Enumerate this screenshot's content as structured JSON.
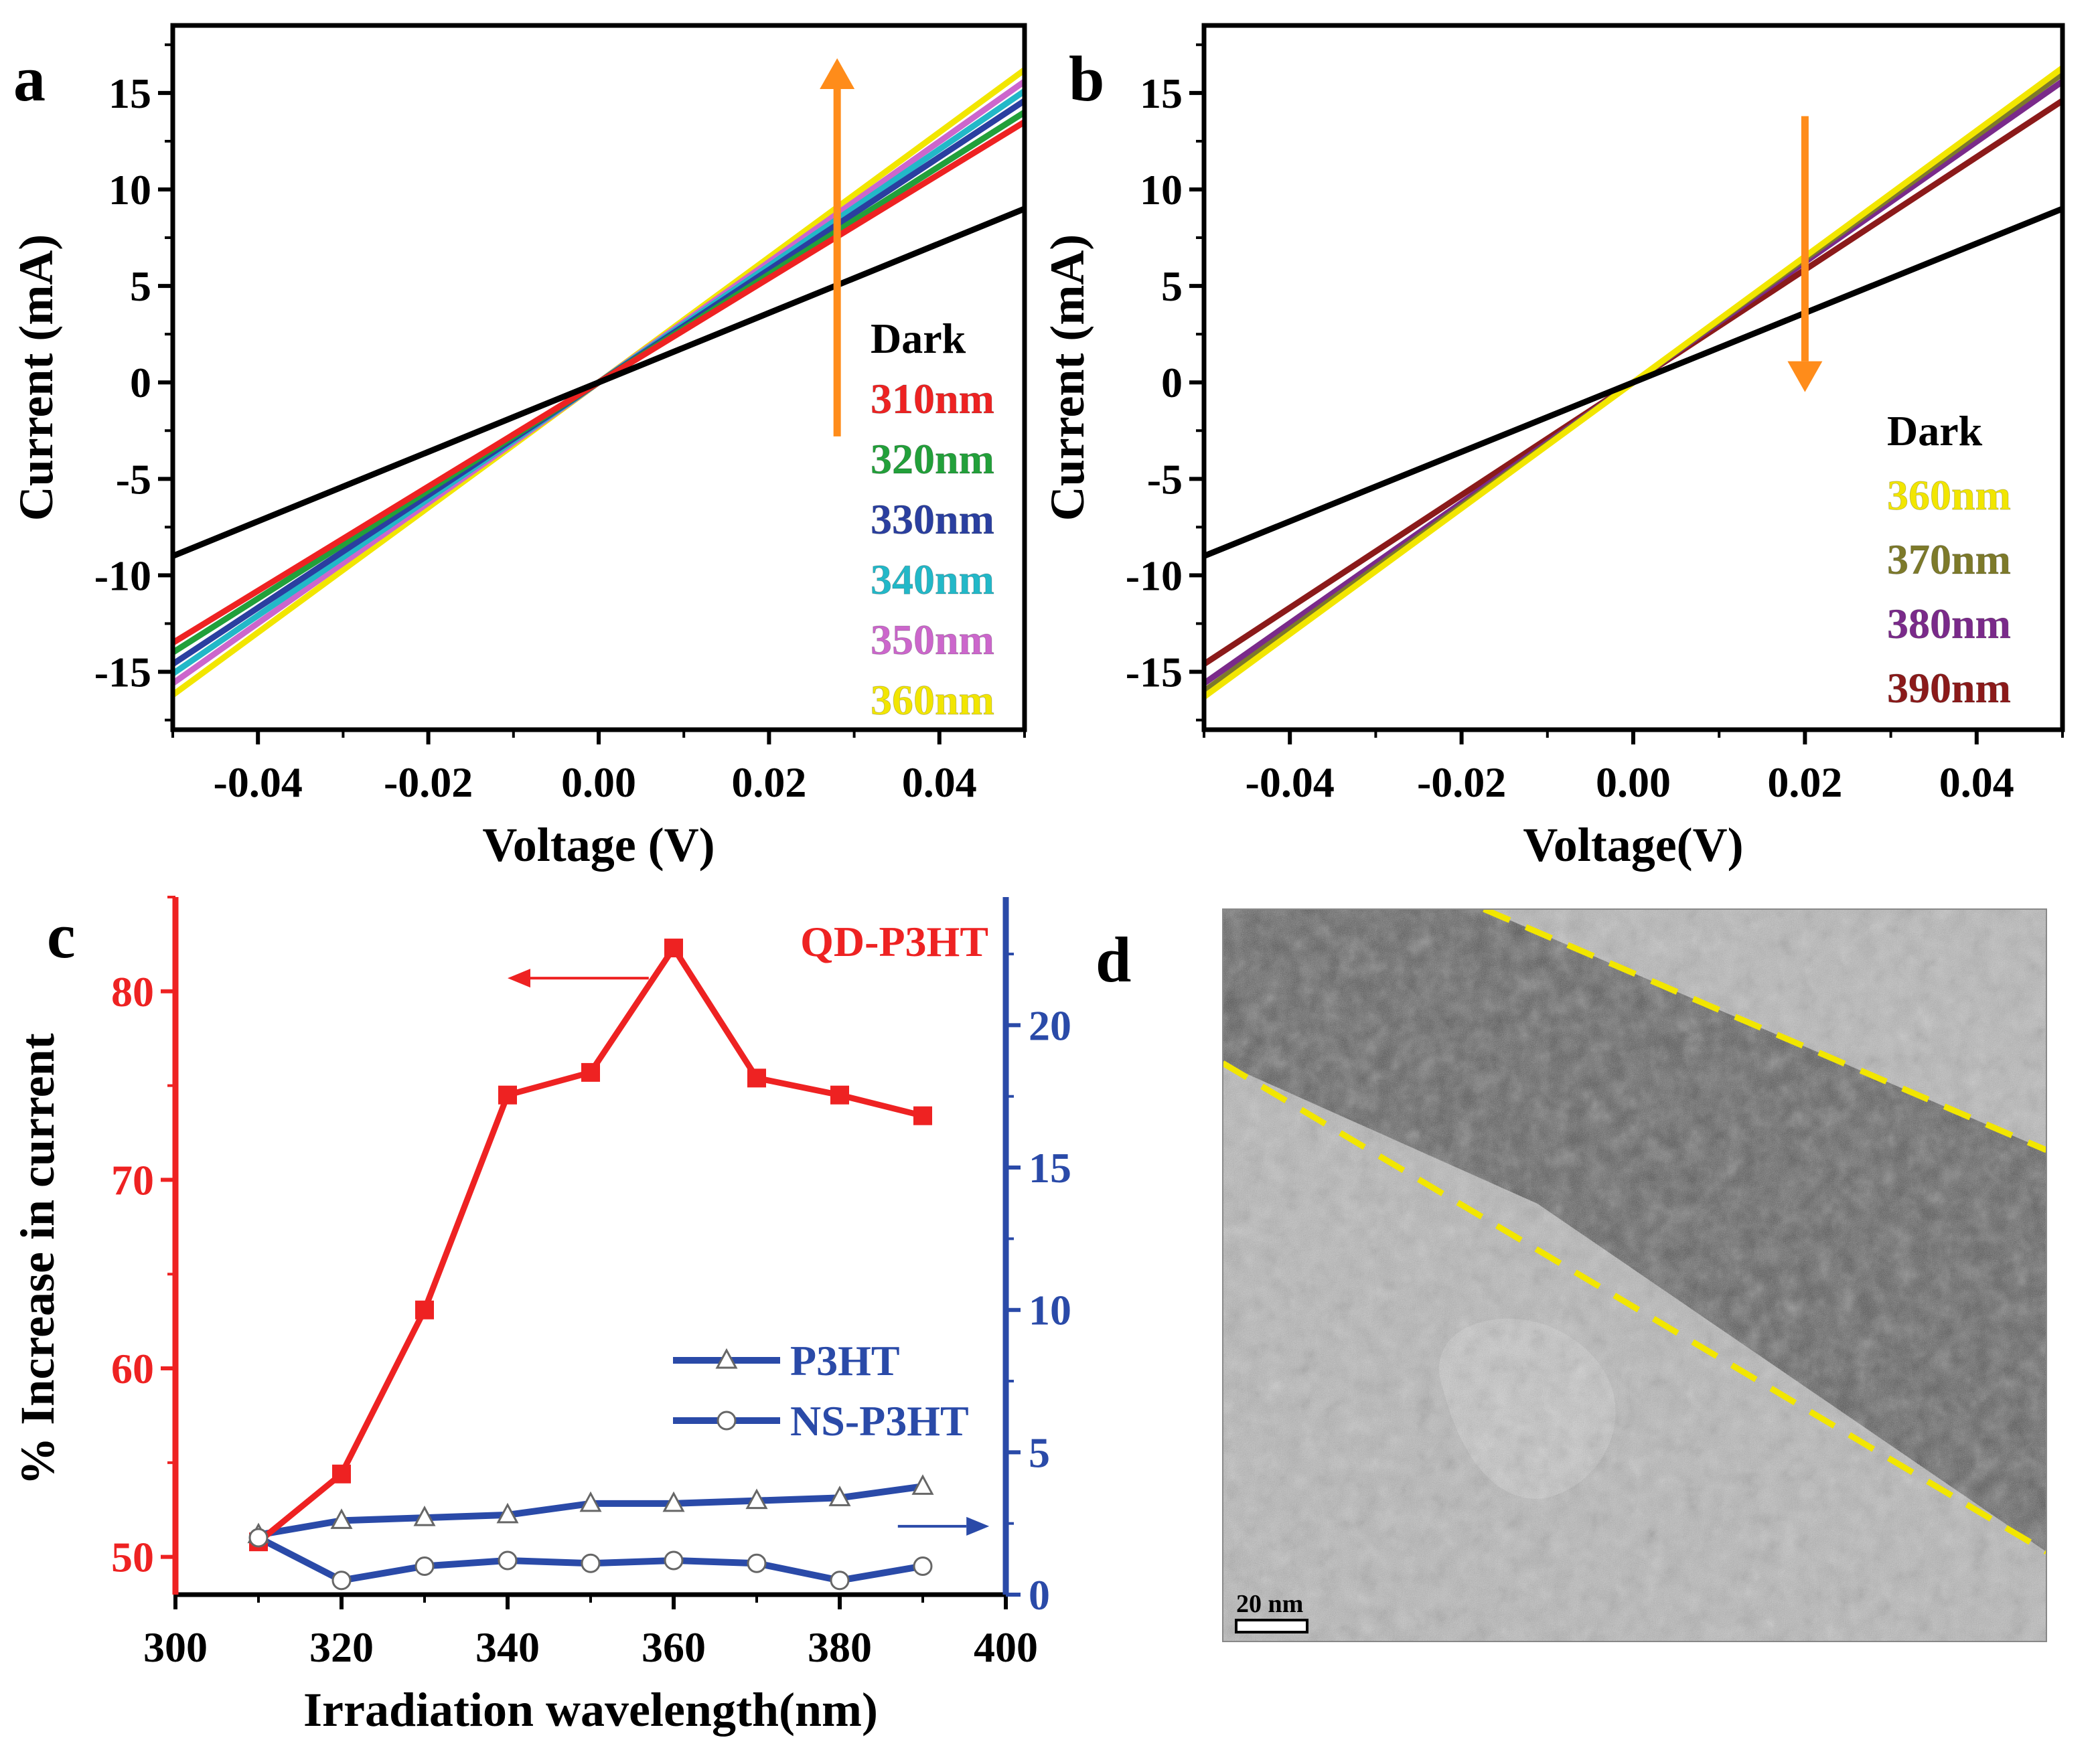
{
  "colors": {
    "dark": "#000000",
    "nm310": "#ee2222",
    "nm320": "#22a03a",
    "nm330": "#2a3fa0",
    "nm340": "#22b8c8",
    "nm350": "#cc66cc",
    "nm360": "#f2e600",
    "nm370": "#7d7a2a",
    "nm380": "#7a2a8a",
    "nm390": "#8b1a1a",
    "arrow": "#ff8c1a",
    "red_axis": "#ee2222",
    "blue_axis": "#2a4aa8",
    "dash": "#f2e600"
  },
  "chart_data": [
    {
      "id": "a",
      "panel_label": "a",
      "type": "line",
      "xlabel": "Voltage (V)",
      "ylabel": "Current (mA)",
      "xlim": [
        -0.05,
        0.05
      ],
      "ylim": [
        -18,
        18.5
      ],
      "xticks": [
        -0.04,
        -0.02,
        0.0,
        0.02,
        0.04
      ],
      "xtick_labels": [
        "-0.04",
        "-0.02",
        "0.00",
        "0.02",
        "0.04"
      ],
      "yticks": [
        -15,
        -10,
        -5,
        0,
        5,
        10,
        15
      ],
      "ytick_labels": [
        "-15",
        "-10",
        "-5",
        "0",
        "5",
        "10",
        "15"
      ],
      "series": [
        {
          "name": "Dark",
          "x": [
            -0.05,
            0.05
          ],
          "y": [
            -9.0,
            9.0
          ]
        },
        {
          "name": "310nm",
          "x": [
            -0.05,
            0.05
          ],
          "y": [
            -13.5,
            13.5
          ]
        },
        {
          "name": "320nm",
          "x": [
            -0.05,
            0.05
          ],
          "y": [
            -14.0,
            14.0
          ]
        },
        {
          "name": "330nm",
          "x": [
            -0.05,
            0.05
          ],
          "y": [
            -14.6,
            14.6
          ]
        },
        {
          "name": "340nm",
          "x": [
            -0.05,
            0.05
          ],
          "y": [
            -15.1,
            15.1
          ]
        },
        {
          "name": "350nm",
          "x": [
            -0.05,
            0.05
          ],
          "y": [
            -15.6,
            15.6
          ]
        },
        {
          "name": "360nm",
          "x": [
            -0.05,
            0.05
          ],
          "y": [
            -16.2,
            16.2
          ]
        }
      ],
      "legend": [
        "Dark",
        "310nm",
        "320nm",
        "330nm",
        "340nm",
        "350nm",
        "360nm"
      ],
      "legend_position": "right",
      "annotation": {
        "type": "arrow",
        "direction": "up",
        "x": 0.028,
        "y_from": -2.8,
        "y_to": 16.8
      }
    },
    {
      "id": "b",
      "panel_label": "b",
      "type": "line",
      "xlabel": "Voltage(V)",
      "ylabel": "Current (mA)",
      "xlim": [
        -0.05,
        0.05
      ],
      "ylim": [
        -18,
        18.5
      ],
      "xticks": [
        -0.04,
        -0.02,
        0.0,
        0.02,
        0.04
      ],
      "xtick_labels": [
        "-0.04",
        "-0.02",
        "0.00",
        "0.02",
        "0.04"
      ],
      "yticks": [
        -15,
        -10,
        -5,
        0,
        5,
        10,
        15
      ],
      "ytick_labels": [
        "-15",
        "-10",
        "-5",
        "0",
        "5",
        "10",
        "15"
      ],
      "series": [
        {
          "name": "Dark",
          "x": [
            -0.05,
            0.05
          ],
          "y": [
            -9.0,
            9.0
          ]
        },
        {
          "name": "360nm",
          "x": [
            -0.05,
            0.05
          ],
          "y": [
            -16.3,
            16.3
          ]
        },
        {
          "name": "370nm",
          "x": [
            -0.05,
            0.05
          ],
          "y": [
            -16.0,
            16.0
          ]
        },
        {
          "name": "380nm",
          "x": [
            -0.05,
            0.05
          ],
          "y": [
            -15.6,
            15.6
          ]
        },
        {
          "name": "390nm",
          "x": [
            -0.05,
            0.05
          ],
          "y": [
            -14.6,
            14.6
          ]
        }
      ],
      "legend": [
        "Dark",
        "360nm",
        "370nm",
        "380nm",
        "390nm"
      ],
      "legend_position": "lower-right",
      "annotation": {
        "type": "arrow",
        "direction": "down",
        "x": 0.02,
        "y_from": 13.8,
        "y_to": -0.5
      }
    },
    {
      "id": "c",
      "panel_label": "c",
      "type": "line",
      "xlabel": "Irradiation wavelength(nm)",
      "ylabel": "% Increase in current",
      "xlim": [
        300,
        400
      ],
      "ylim_left": [
        48,
        85
      ],
      "ylim_right": [
        0,
        24.5
      ],
      "xticks": [
        300,
        320,
        340,
        360,
        380,
        400
      ],
      "xtick_labels": [
        "300",
        "320",
        "340",
        "360",
        "380",
        "400"
      ],
      "yticks_left": [
        50,
        60,
        70,
        80
      ],
      "ytick_labels_left": [
        "50",
        "60",
        "70",
        "80"
      ],
      "yticks_right": [
        0,
        5,
        10,
        15,
        20
      ],
      "ytick_labels_right": [
        "0",
        "5",
        "10",
        "15",
        "20"
      ],
      "x": [
        310,
        320,
        330,
        340,
        350,
        360,
        370,
        380,
        390
      ],
      "series": [
        {
          "name": "QD-P3HT",
          "axis": "left",
          "marker": "square",
          "values": [
            50.8,
            54.4,
            63.1,
            74.5,
            75.7,
            82.3,
            75.4,
            74.5,
            73.4
          ]
        },
        {
          "name": "P3HT",
          "axis": "right",
          "marker": "triangle",
          "values": [
            2.1,
            2.6,
            2.7,
            2.8,
            3.2,
            3.2,
            3.3,
            3.4,
            3.8
          ]
        },
        {
          "name": "NS-P3HT",
          "axis": "right",
          "marker": "circle",
          "values": [
            2.0,
            0.5,
            1.0,
            1.2,
            1.1,
            1.2,
            1.1,
            0.5,
            1.0
          ]
        }
      ],
      "legend": [
        "QD-P3HT",
        "P3HT",
        "NS-P3HT"
      ],
      "annotations": [
        {
          "type": "arrow",
          "direction": "left",
          "x_from": 357,
          "x_to": 340,
          "y_left": 80.7
        },
        {
          "type": "arrow",
          "direction": "right",
          "x_from": 387,
          "x_to": 398,
          "y_right": 2.4
        }
      ]
    }
  ],
  "panel_d": {
    "label": "d",
    "scale_bar_label": "20 nm"
  }
}
